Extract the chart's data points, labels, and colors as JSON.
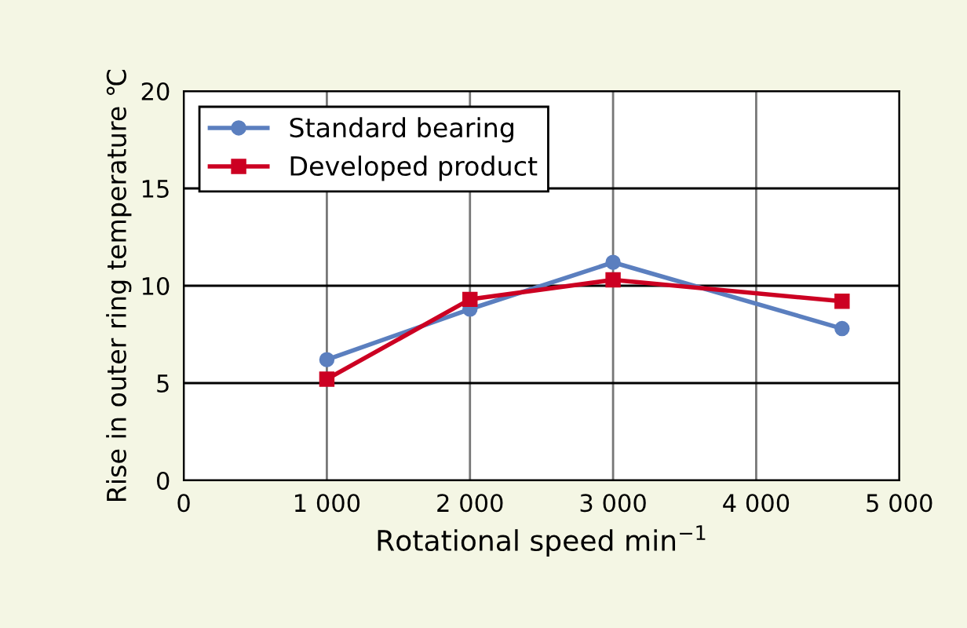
{
  "chart_data": {
    "type": "line",
    "xlabel": "Rotational speed min$^{−1}$",
    "ylabel": "Rise in outer ring temperature ℃",
    "xlim": [
      0,
      5000
    ],
    "ylim": [
      0,
      20
    ],
    "xticks": [
      0,
      {
        "value": 1000,
        "label": "1 000"
      },
      {
        "value": 2000,
        "label": "2 000"
      },
      {
        "value": 3000,
        "label": "3 000"
      },
      {
        "value": 4000,
        "label": "4 000"
      },
      {
        "value": 5000,
        "label": "5 000"
      }
    ],
    "yticks": [
      0,
      5,
      10,
      15,
      20
    ],
    "grid": true,
    "legend": "top left",
    "x": [
      1000,
      2000,
      3000,
      4600
    ],
    "series": [
      {
        "name": "Standard bearing",
        "color": "#5b7fbf",
        "marker": "circle",
        "values": [
          6.2,
          8.8,
          11.2,
          7.8
        ]
      },
      {
        "name": "Developed product",
        "color": "#cc0022",
        "marker": "square",
        "values": [
          5.2,
          9.3,
          10.3,
          9.2
        ]
      }
    ]
  }
}
